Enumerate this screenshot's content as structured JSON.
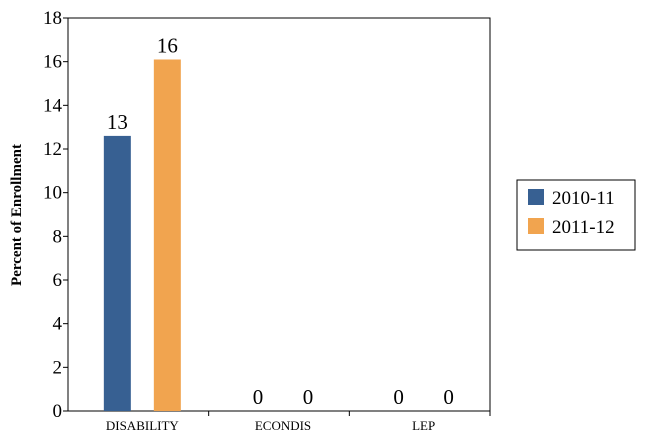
{
  "chart_data": {
    "type": "bar",
    "title": "",
    "xlabel": "",
    "ylabel": "Percent of Enrollment",
    "categories": [
      "DISABILITY",
      "ECONDIS",
      "LEP"
    ],
    "series": [
      {
        "name": "2010-11",
        "values": [
          12.6,
          0,
          0
        ],
        "labels": [
          "13",
          "0",
          "0"
        ],
        "color": "#376092"
      },
      {
        "name": "2011-12",
        "values": [
          16.1,
          0,
          0
        ],
        "labels": [
          "16",
          "0",
          "0"
        ],
        "color": "#F1A44F"
      }
    ],
    "ylim": [
      0,
      18
    ],
    "yticks": [
      "0",
      "2",
      "4",
      "6",
      "8",
      "10",
      "12",
      "14",
      "16",
      "18"
    ],
    "grid": false,
    "legend": "right"
  }
}
